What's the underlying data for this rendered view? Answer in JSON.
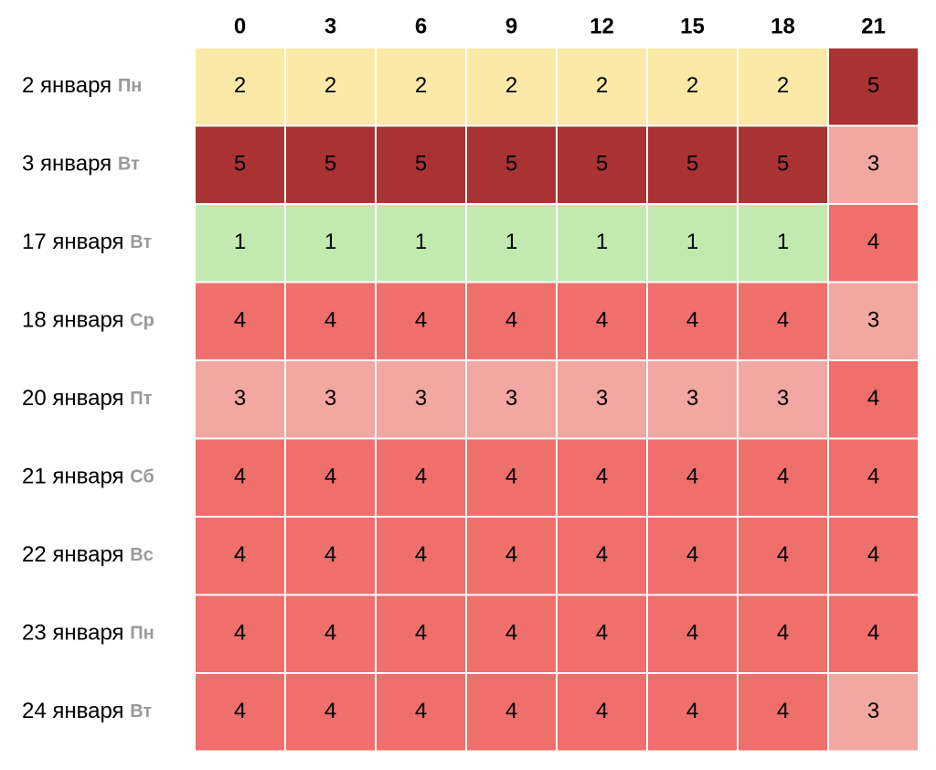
{
  "chart_data": {
    "type": "heatmap",
    "title": "",
    "xlabel": "",
    "ylabel": "",
    "legend": "none",
    "grid": false,
    "x_categories": [
      "0",
      "3",
      "6",
      "9",
      "12",
      "15",
      "18",
      "21"
    ],
    "y_categories": [
      {
        "date": "2 января",
        "weekday": "Пн"
      },
      {
        "date": "3 января",
        "weekday": "Вт"
      },
      {
        "date": "17 января",
        "weekday": "Вт"
      },
      {
        "date": "18 января",
        "weekday": "Ср"
      },
      {
        "date": "20 января",
        "weekday": "Пт"
      },
      {
        "date": "21 января",
        "weekday": "Сб"
      },
      {
        "date": "22 января",
        "weekday": "Вс"
      },
      {
        "date": "23 января",
        "weekday": "Пн"
      },
      {
        "date": "24 января",
        "weekday": "Вт"
      }
    ],
    "values": [
      [
        2,
        2,
        2,
        2,
        2,
        2,
        2,
        5
      ],
      [
        5,
        5,
        5,
        5,
        5,
        5,
        5,
        3
      ],
      [
        1,
        1,
        1,
        1,
        1,
        1,
        1,
        4
      ],
      [
        4,
        4,
        4,
        4,
        4,
        4,
        4,
        3
      ],
      [
        3,
        3,
        3,
        3,
        3,
        3,
        3,
        4
      ],
      [
        4,
        4,
        4,
        4,
        4,
        4,
        4,
        4
      ],
      [
        4,
        4,
        4,
        4,
        4,
        4,
        4,
        4
      ],
      [
        4,
        4,
        4,
        4,
        4,
        4,
        4,
        4
      ],
      [
        4,
        4,
        4,
        4,
        4,
        4,
        4,
        3
      ]
    ],
    "value_colors": {
      "1": "#c3e8b0",
      "2": "#fbeaa7",
      "3": "#f2a7a2",
      "4": "#ee6f6b",
      "5": "#a93332"
    },
    "weekday_color": "#9a9a9a",
    "cell_border_color": "#ffffff"
  }
}
